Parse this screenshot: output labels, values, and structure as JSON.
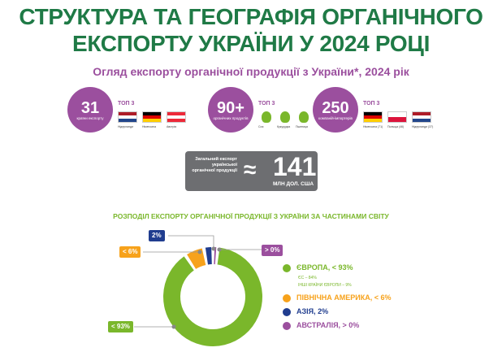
{
  "header": {
    "title_line1": "СТРУКТУРА ТА ГЕОГРАФІЯ ОРГАНІЧНОГО",
    "title_line2": "ЕКСПОРТУ УКРАЇНИ У 2024 РОЦІ",
    "subtitle": "Огляд експорту органічної продукції з України*, 2024 рік"
  },
  "stats": [
    {
      "value": "31",
      "label": "країни експорту",
      "top_label": "ТОП 3",
      "top": [
        {
          "name": "Нідерланди",
          "icon": "flag-netherlands"
        },
        {
          "name": "Німеччина",
          "icon": "flag-germany"
        },
        {
          "name": "Австрія",
          "icon": "flag-austria"
        }
      ]
    },
    {
      "value": "90+",
      "label": "органічних продуктів",
      "top_label": "ТОП 3",
      "top": [
        {
          "name": "Соя",
          "icon": "leaf-icon"
        },
        {
          "name": "Кукурудза",
          "icon": "leaf-icon"
        },
        {
          "name": "Пшениця",
          "icon": "leaf-icon"
        }
      ]
    },
    {
      "value": "250",
      "label": "компаній-імпортерів",
      "top_label": "ТОП 3",
      "top": [
        {
          "name": "Німеччина (71)",
          "icon": "flag-germany"
        },
        {
          "name": "Польща (46)",
          "icon": "flag-poland"
        },
        {
          "name": "Нідерланди (37)",
          "icon": "flag-netherlands"
        }
      ]
    }
  ],
  "total": {
    "label": "Загальний експорт української органічної продукції",
    "approx": "≈",
    "value": "141",
    "unit": "МЛН ДОЛ. США"
  },
  "chart_data": {
    "type": "pie",
    "style": "donut",
    "title": "РОЗПОДІЛ ЕКСПОРТУ ОРГАНІЧНОЇ ПРОДУКЦІЇ З УКРАЇНИ ЗА ЧАСТИНАМИ СВІТУ",
    "series": [
      {
        "name": "ЄВРОПА, < 93%",
        "label": "< 93%",
        "value": 92,
        "color": "#7ab72b"
      },
      {
        "name": "ПІВНІЧНА АМЕРИКА, < 6%",
        "label": "< 6%",
        "value": 5.5,
        "color": "#f7a21b"
      },
      {
        "name": "АЗІЯ, 2%",
        "label": "2%",
        "value": 2,
        "color": "#203d8f"
      },
      {
        "name": "АВСТРАЛІЯ, > 0%",
        "label": "> 0%",
        "value": 0.5,
        "color": "#9b4f9e"
      }
    ],
    "europe_breakdown": [
      "ЄС – 84%",
      "ІНШІ КРАЇНИ ЄВРОПИ – 9%"
    ],
    "legend": "right"
  }
}
